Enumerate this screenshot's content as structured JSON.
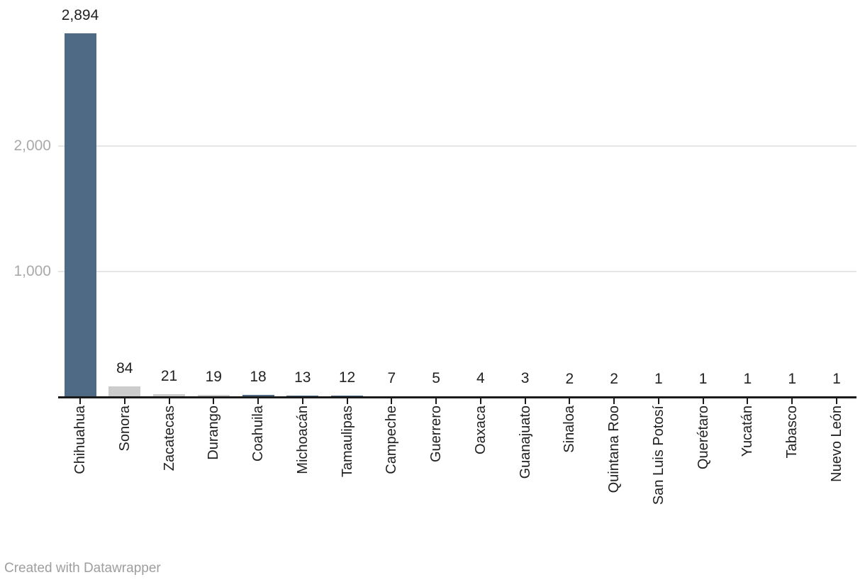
{
  "page": {
    "background": "#ffffff"
  },
  "footer": {
    "text": "Created with Datawrapper"
  },
  "colors": {
    "bar_primary": "#4e6a85",
    "bar_muted": "#cccccc",
    "axis": "#1a1a1a",
    "grid": "#e6e6e6",
    "value_label": "#222222",
    "category_label": "#1f1f1f",
    "ytick_label": "#a9a9a9",
    "footer_text": "#9e9e9e"
  },
  "chart_data": {
    "type": "bar",
    "title": "",
    "xlabel": "",
    "ylabel": "",
    "categories": [
      "Chihuahua",
      "Sonora",
      "Zacatecas",
      "Durango",
      "Coahuila",
      "Michoacán",
      "Tamaulipas",
      "Campeche",
      "Guerrero",
      "Oaxaca",
      "Guanajuato",
      "Sinaloa",
      "Quintana Roo",
      "San Luis Potosí",
      "Querétaro",
      "Yucatán",
      "Tabasco",
      "Nuevo León"
    ],
    "values": [
      2894,
      84,
      21,
      19,
      18,
      13,
      12,
      7,
      5,
      4,
      3,
      2,
      2,
      1,
      1,
      1,
      1,
      1
    ],
    "value_labels": [
      "2,894",
      "84",
      "21",
      "19",
      "18",
      "13",
      "12",
      "7",
      "5",
      "4",
      "3",
      "2",
      "2",
      "1",
      "1",
      "1",
      "1",
      "1"
    ],
    "bar_colors": [
      "#4e6a85",
      "#cccccc",
      "#cccccc",
      "#cccccc",
      "#4e6a85",
      "#4e6a85",
      "#4e6a85",
      "#4e6a85",
      "#4e6a85",
      "#4e6a85",
      "#4e6a85",
      "#4e6a85",
      "#4e6a85",
      "#4e6a85",
      "#4e6a85",
      "#4e6a85",
      "#4e6a85",
      "#4e6a85"
    ],
    "ylim": [
      0,
      2894
    ],
    "yticks": [
      {
        "value": 1000,
        "label": "1,000"
      },
      {
        "value": 2000,
        "label": "2,000"
      }
    ],
    "grid": "horizontal-lines-at-yticks",
    "legend": "none",
    "bar_label_position": "above-bar",
    "category_label_rotation": -90
  }
}
